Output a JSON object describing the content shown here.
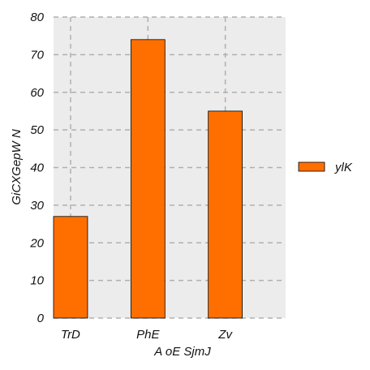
{
  "chart_data": {
    "type": "bar",
    "categories": [
      "TrD",
      "PhE",
      "Zv"
    ],
    "series": [
      {
        "name": "ylK",
        "values": [
          27,
          74,
          55
        ],
        "color": "#ff6f00"
      }
    ],
    "xlabel": "A oE  SjmJ",
    "ylabel": "GiCXGepW N",
    "ylim": [
      0,
      80
    ],
    "yticks": [
      0,
      10,
      20,
      30,
      40,
      50,
      60,
      70,
      80
    ],
    "grid": true,
    "legend": "right",
    "colors": {
      "plot_bg": "#ececec",
      "grid": "#b0b0b0",
      "bar_edge": "#000000"
    }
  }
}
